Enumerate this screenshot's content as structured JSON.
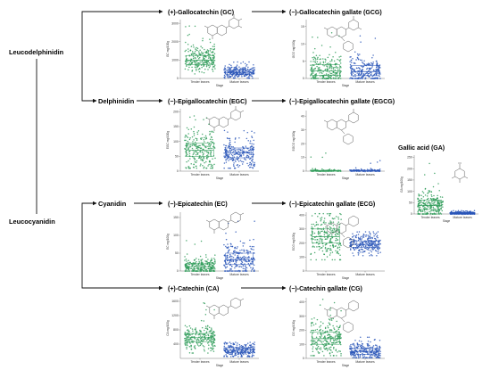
{
  "pathway": {
    "precursors": [
      "Leucodelphinidin",
      "Delphinidin",
      "Cyanidin",
      "Leucocyanidin"
    ]
  },
  "colors": {
    "tender": "#2e9b58",
    "mature": "#2a56b8",
    "arrow": "#111111",
    "structure": "#444444"
  },
  "chart_data": [
    {
      "id": "gc",
      "type": "scatter",
      "title": "(+)-Gallocatechin (GC)",
      "ylabel": "GC mg/100g",
      "xlabel": "Stage",
      "categories": [
        "Tender leaves",
        "Mature leaves"
      ],
      "yticks": [
        0,
        1000,
        2000,
        3000
      ],
      "ylim": [
        0,
        3200
      ],
      "groups": [
        {
          "median": 1000,
          "q1": 760,
          "q3": 1250,
          "lo": 250,
          "hi": 3000,
          "n": 240
        },
        {
          "median": 330,
          "q1": 230,
          "q3": 450,
          "lo": 20,
          "hi": 900,
          "n": 240
        }
      ]
    },
    {
      "id": "gcg",
      "type": "scatter",
      "title": "(−)-Gallocatechin gallate (GCG)",
      "ylabel": "GCG mg/100g",
      "xlabel": "Stage",
      "categories": [
        "Tender leaves",
        "Mature leaves"
      ],
      "yticks": [
        0,
        5,
        10,
        15
      ],
      "ylim": [
        0,
        17
      ],
      "groups": [
        {
          "median": 2.2,
          "q1": 0.9,
          "q3": 4,
          "lo": 0,
          "hi": 15,
          "n": 240
        },
        {
          "median": 2,
          "q1": 0.8,
          "q3": 3.7,
          "lo": 0,
          "hi": 13,
          "n": 240
        }
      ]
    },
    {
      "id": "egc",
      "type": "scatter",
      "title": "(−)-Epigallocatechin (EGC)",
      "ylabel": "EGC mg/100g",
      "xlabel": "Stage",
      "categories": [
        "Tender leaves",
        "Mature leaves"
      ],
      "yticks": [
        0,
        50,
        100,
        150,
        200
      ],
      "ylim": [
        0,
        210
      ],
      "groups": [
        {
          "median": 70,
          "q1": 50,
          "q3": 95,
          "lo": 10,
          "hi": 195,
          "n": 240
        },
        {
          "median": 62,
          "q1": 45,
          "q3": 78,
          "lo": 10,
          "hi": 165,
          "n": 240
        }
      ]
    },
    {
      "id": "egcg",
      "type": "scatter",
      "title": "(−)-Epigallocatechin gallate (EGCG)",
      "ylabel": "EGCG mg/100g",
      "xlabel": "Stage",
      "categories": [
        "Tender leaves",
        "Mature leaves"
      ],
      "yticks": [
        0,
        10,
        20,
        30,
        40
      ],
      "ylim": [
        0,
        44
      ],
      "groups": [
        {
          "median": 0.3,
          "q1": 0,
          "q3": 0.6,
          "lo": 0,
          "hi": 14,
          "n": 110
        },
        {
          "median": 0.3,
          "q1": 0,
          "q3": 0.6,
          "lo": 0,
          "hi": 9,
          "n": 110
        }
      ]
    },
    {
      "id": "ga",
      "type": "scatter",
      "title": "Gallic acid (GA)",
      "ylabel": "GA mg/100g",
      "xlabel": "Stage",
      "categories": [
        "Tender leaves",
        "Mature leaves"
      ],
      "yticks": [
        0,
        50,
        100,
        150,
        200,
        250
      ],
      "ylim": [
        0,
        260
      ],
      "groups": [
        {
          "median": 38,
          "q1": 20,
          "q3": 62,
          "lo": 0,
          "hi": 240,
          "n": 240
        },
        {
          "median": 3,
          "q1": 1,
          "q3": 6,
          "lo": 0,
          "hi": 15,
          "n": 240
        }
      ]
    },
    {
      "id": "ec",
      "type": "scatter",
      "title": "(−)-Epicatechin (EC)",
      "ylabel": "EC mg/100g",
      "xlabel": "Stage",
      "categories": [
        "Tender leaves",
        "Mature leaves"
      ],
      "yticks": [
        0,
        50,
        100,
        150
      ],
      "ylim": [
        0,
        165
      ],
      "groups": [
        {
          "median": 12,
          "q1": 6,
          "q3": 22,
          "lo": 0,
          "hi": 110,
          "n": 240
        },
        {
          "median": 32,
          "q1": 18,
          "q3": 50,
          "lo": 0,
          "hi": 150,
          "n": 240
        }
      ]
    },
    {
      "id": "ecg",
      "type": "scatter",
      "title": "(−)-Epicatechin gallate (ECG)",
      "ylabel": "ECG mg/100g",
      "xlabel": "Stage",
      "categories": [
        "Tender leaves",
        "Mature leaves"
      ],
      "yticks": [
        0,
        100,
        200,
        300,
        400
      ],
      "ylim": [
        0,
        420
      ],
      "groups": [
        {
          "median": 245,
          "q1": 200,
          "q3": 300,
          "lo": 80,
          "hi": 410,
          "n": 240
        },
        {
          "median": 190,
          "q1": 170,
          "q3": 215,
          "lo": 110,
          "hi": 280,
          "n": 240
        }
      ]
    },
    {
      "id": "ca",
      "type": "scatter",
      "title": "(+)-Catechin (CA)",
      "ylabel": "CA mg/100g",
      "xlabel": "Stage",
      "categories": [
        "Tender leaves",
        "Mature leaves"
      ],
      "yticks": [
        400,
        800,
        1200,
        1600
      ],
      "ylim": [
        0,
        1700
      ],
      "groups": [
        {
          "median": 580,
          "q1": 470,
          "q3": 700,
          "lo": 150,
          "hi": 1650,
          "n": 240
        },
        {
          "median": 230,
          "q1": 170,
          "q3": 300,
          "lo": 50,
          "hi": 450,
          "n": 240
        }
      ]
    },
    {
      "id": "cg",
      "type": "scatter",
      "title": "(−)-Catechin gallate (CG)",
      "ylabel": "CG mg/100g",
      "xlabel": "Stage",
      "categories": [
        "Tender leaves",
        "Mature leaves"
      ],
      "yticks": [
        0,
        100,
        200,
        300,
        400
      ],
      "ylim": [
        0,
        430
      ],
      "groups": [
        {
          "median": 140,
          "q1": 100,
          "q3": 185,
          "lo": 20,
          "hi": 420,
          "n": 240
        },
        {
          "median": 50,
          "q1": 30,
          "q3": 70,
          "lo": 5,
          "hi": 150,
          "n": 240
        }
      ]
    }
  ]
}
